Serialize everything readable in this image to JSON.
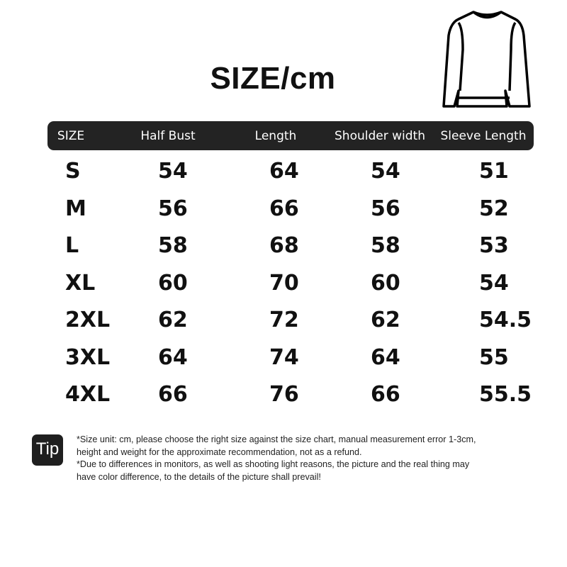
{
  "title": "SIZE/cm",
  "header": [
    "SIZE",
    "Half Bust",
    "Length",
    "Shoulder width",
    "Sleeve Length"
  ],
  "rows": [
    [
      "S",
      "54",
      "64",
      "54",
      "51"
    ],
    [
      "M",
      "56",
      "66",
      "56",
      "52"
    ],
    [
      "L",
      "58",
      "68",
      "58",
      "53"
    ],
    [
      "XL",
      "60",
      "70",
      "60",
      "54"
    ],
    [
      "2XL",
      "62",
      "72",
      "62",
      "54.5"
    ],
    [
      "3XL",
      "64",
      "74",
      "64",
      "55"
    ],
    [
      "4XL",
      "66",
      "76",
      "66",
      "55.5"
    ]
  ],
  "tip": {
    "label": "Tip",
    "lines": [
      "*Size unit: cm, please choose the right size against the size chart, manual measurement error 1-3cm,",
      "height and weight for the approximate recommendation, not as a refund.",
      "*Due to differences in monitors, as well as shooting light reasons, the picture and the real thing may",
      "have color difference, to the details of the picture shall prevail!"
    ]
  },
  "icons": {
    "garment": "sweatshirt-icon"
  },
  "colors": {
    "header_bg": "#232323",
    "text": "#111111"
  }
}
